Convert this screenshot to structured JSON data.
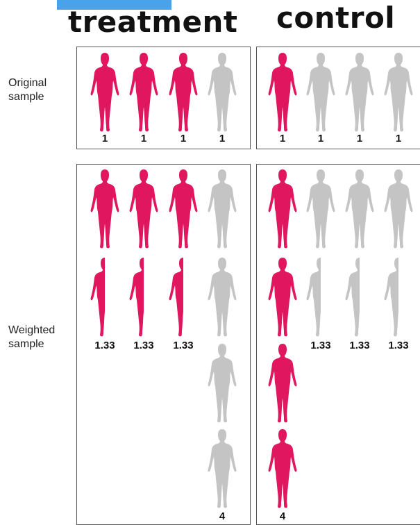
{
  "header": {
    "treatment_title": "treatment",
    "control_title": "control"
  },
  "rows": {
    "original_label_line1": "Original",
    "original_label_line2": "sample",
    "weighted_label_line1": "Weighted",
    "weighted_label_line2": "sample"
  },
  "colors": {
    "treated": "#e0175f",
    "untreated": "#c4c4c4",
    "accent": "#4aa3ea"
  },
  "original": {
    "treatment_weights": [
      "1",
      "1",
      "1",
      "1"
    ],
    "control_weights": [
      "1",
      "1",
      "1",
      "1"
    ]
  },
  "weighted": {
    "treatment_weights": [
      "1.33",
      "1.33",
      "1.33",
      "4"
    ],
    "control_weights": [
      "4",
      "1.33",
      "1.33",
      "1.33"
    ]
  }
}
